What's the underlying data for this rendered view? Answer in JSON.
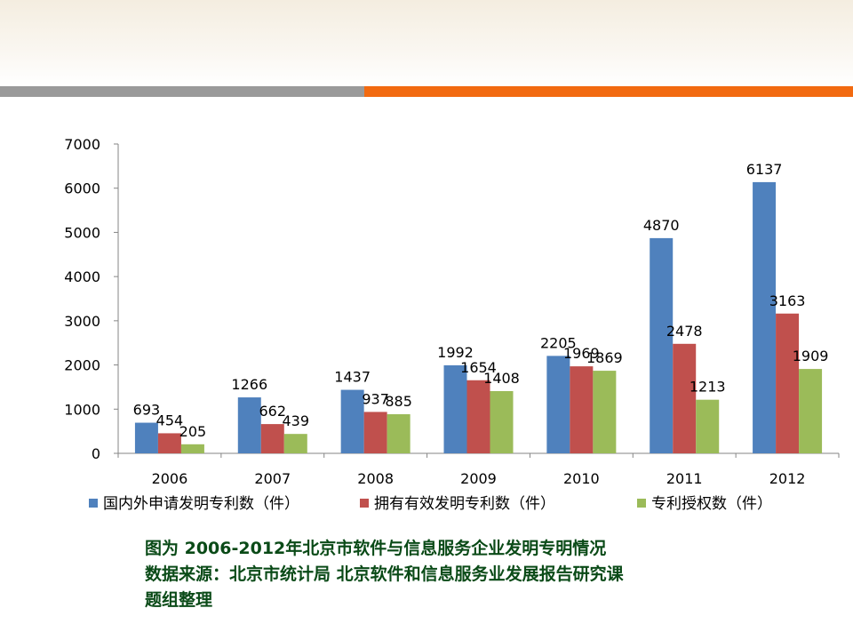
{
  "colors": {
    "header_gradient": "#f4ede0",
    "rule_gray": "#9a9a9a",
    "rule_orange": "#f26a10",
    "caption_text": "#0a4a17"
  },
  "chart_data": {
    "type": "bar",
    "title": "",
    "xlabel": "",
    "ylabel": "",
    "categories": [
      "2006",
      "2007",
      "2008",
      "2009",
      "2010",
      "2011",
      "2012"
    ],
    "ylim": [
      0,
      7000
    ],
    "yticks": [
      0,
      1000,
      2000,
      3000,
      4000,
      5000,
      6000,
      7000
    ],
    "grid": false,
    "legend_position": "bottom",
    "series": [
      {
        "name": "国内外申请发明专利数（件）",
        "color": "#4f81bd",
        "values": [
          693,
          1266,
          1437,
          1992,
          2205,
          4870,
          6137
        ]
      },
      {
        "name": "拥有有效发明专利数（件）",
        "color": "#c0504d",
        "values": [
          454,
          662,
          937,
          1654,
          1969,
          2478,
          3163
        ]
      },
      {
        "name": "专利授权数（件）",
        "color": "#9bbb59",
        "values": [
          205,
          439,
          885,
          1408,
          1869,
          1213,
          1909
        ]
      }
    ]
  },
  "caption": {
    "line1": "图为  2006-2012年北京市软件与信息服务企业发明专明情况",
    "line2": "数据来源：北京市统计局 北京软件和信息服务业发展报告研究课",
    "line3": "题组整理"
  }
}
